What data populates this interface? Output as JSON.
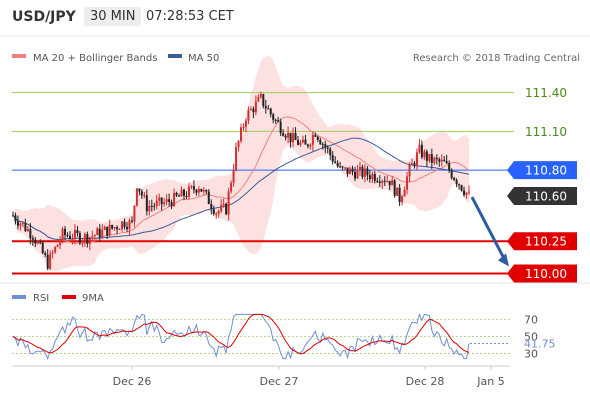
{
  "header": {
    "symbol": "USD/JPY",
    "timeframe": "30 MIN",
    "time": "07:28:53 CET"
  },
  "legend": {
    "bb_label": "MA 20 + Bollinger Bands",
    "ma50_label": "MA 50",
    "copyright": "Research © 2018 Trading Central",
    "rsi_label": "RSI",
    "ma9_label": "9MA"
  },
  "colors": {
    "band_fill": "#fde0e0",
    "ma20": "#f08080",
    "ma50": "#3a5d9c",
    "up_candle": "#d03030",
    "down_candle": "#222222",
    "green_level": "#9ccc65",
    "blue_level": "#2962ff",
    "red_level": "#e00000",
    "rsi_line": "#6f8fd0",
    "rsi_ma": "#e00000",
    "arrow": "#2e5aa8"
  },
  "chart_data": {
    "type": "candlestick",
    "y_range": [
      109.95,
      111.56
    ],
    "x_labels": [
      "Dec 26",
      "Dec 27",
      "Dec 28",
      "Jan 5"
    ],
    "levels": [
      {
        "value": 111.4,
        "label": "111.40",
        "style": "green"
      },
      {
        "value": 111.1,
        "label": "111.10",
        "style": "green"
      },
      {
        "value": 110.8,
        "label": "110.80",
        "style": "blue"
      },
      {
        "value": 110.6,
        "label": "110.60",
        "style": "current"
      },
      {
        "value": 110.25,
        "label": "110.25",
        "style": "red"
      },
      {
        "value": 110.0,
        "label": "110.00",
        "style": "red"
      }
    ],
    "arrow": {
      "from": 110.6,
      "to": 110.04
    },
    "rsi": {
      "y_range": [
        20,
        80
      ],
      "ticks": [
        70,
        50,
        30
      ],
      "current": 41.75,
      "current_label": "41.75"
    }
  }
}
